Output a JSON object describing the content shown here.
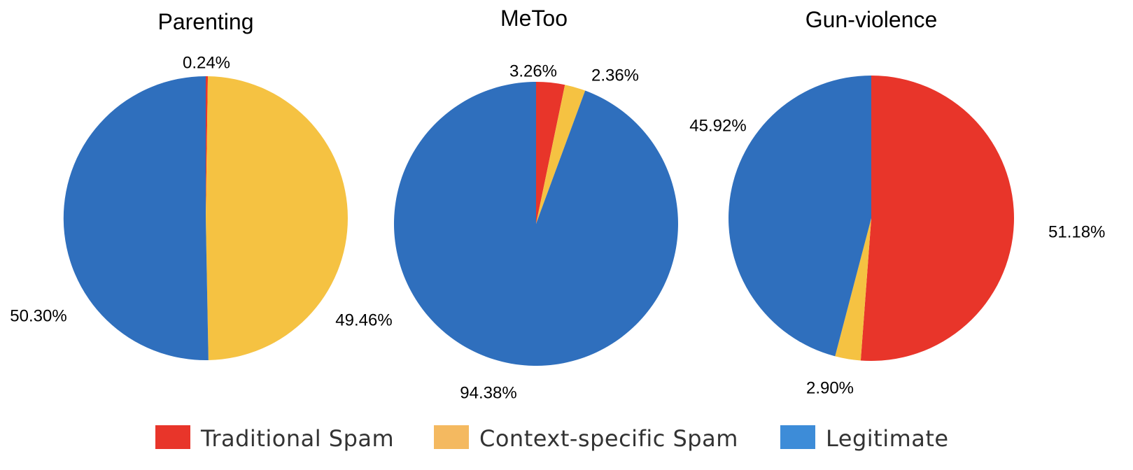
{
  "legend": [
    {
      "label": "Traditional Spam",
      "color": "#e8352a"
    },
    {
      "label": "Context-specific Spam",
      "color": "#f4b960"
    },
    {
      "label": "Legitimate",
      "color": "#3d8cd8"
    }
  ],
  "chart_data": [
    {
      "type": "pie",
      "title": "Parenting",
      "slices": [
        {
          "name": "Traditional Spam",
          "value": 0.24,
          "label": "0.24%",
          "color": "#e8352a"
        },
        {
          "name": "Context-specific Spam",
          "value": 49.46,
          "label": "49.46%",
          "color": "#f5c242"
        },
        {
          "name": "Legitimate",
          "value": 50.3,
          "label": "50.30%",
          "color": "#2f6fbd"
        }
      ]
    },
    {
      "type": "pie",
      "title": "MeToo",
      "slices": [
        {
          "name": "Traditional Spam",
          "value": 3.26,
          "label": "3.26%",
          "color": "#e8352a"
        },
        {
          "name": "Context-specific Spam",
          "value": 2.36,
          "label": "2.36%",
          "color": "#f5c242"
        },
        {
          "name": "Legitimate",
          "value": 94.38,
          "label": "94.38%",
          "color": "#2f6fbd"
        }
      ]
    },
    {
      "type": "pie",
      "title": "Gun-violence",
      "slices": [
        {
          "name": "Traditional Spam",
          "value": 51.18,
          "label": "51.18%",
          "color": "#e8352a"
        },
        {
          "name": "Context-specific Spam",
          "value": 2.9,
          "label": "2.90%",
          "color": "#f5c242"
        },
        {
          "name": "Legitimate",
          "value": 45.92,
          "label": "45.92%",
          "color": "#2f6fbd"
        }
      ]
    }
  ]
}
